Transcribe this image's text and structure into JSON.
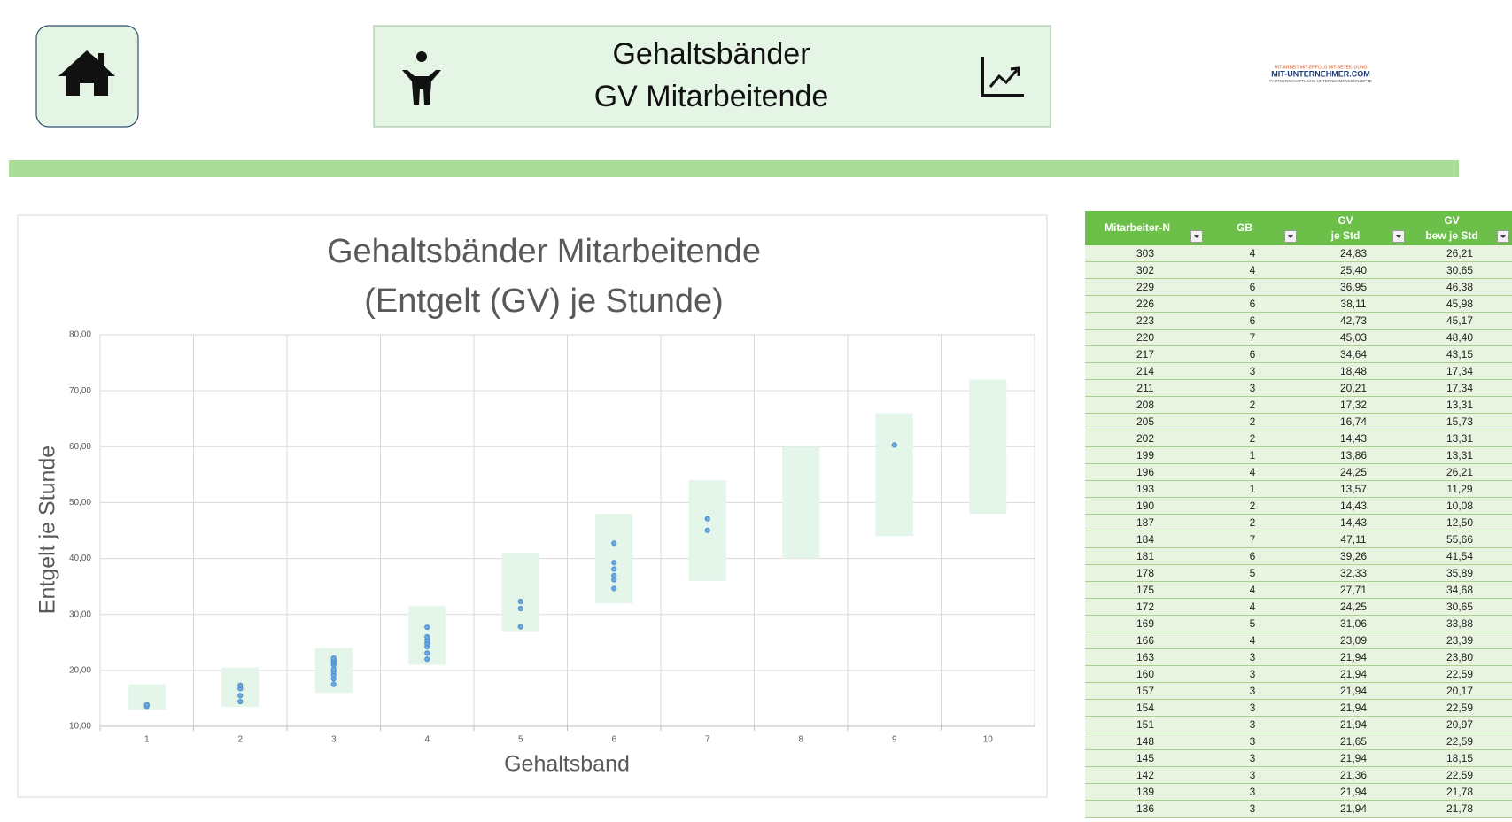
{
  "header": {
    "title_lines": [
      "Gehaltsbänder",
      "GV Mitarbeitende"
    ],
    "logo_lines": [
      "MIT-ARBEIT MIT-ERFOLG MIT-BETEILIGUNG",
      "MIT-UNTERNEHMER.COM",
      "PARTNERSCHAFTLICHE UNTERNEHMENSKONZEPTE"
    ]
  },
  "chart_data": {
    "type": "scatter",
    "title": [
      "Gehaltsbänder Mitarbeitende",
      "(Entgelt (GV) je Stunde)"
    ],
    "x_label": "Gehaltsband",
    "y_label": "Entgelt je Stunde",
    "xlim": [
      0.5,
      10.5
    ],
    "xticks": [
      1,
      2,
      3,
      4,
      5,
      6,
      7,
      8,
      9,
      10
    ],
    "ylim": [
      10,
      80
    ],
    "yticks": [
      {
        "value": 10,
        "label": "10,00"
      },
      {
        "value": 20,
        "label": "20,00"
      },
      {
        "value": 30,
        "label": "30,00"
      },
      {
        "value": 40,
        "label": "40,00"
      },
      {
        "value": 50,
        "label": "50,00"
      },
      {
        "value": 60,
        "label": "60,00"
      },
      {
        "value": 70,
        "label": "70,00"
      },
      {
        "value": 80,
        "label": "80,00"
      }
    ],
    "grid": true,
    "bands": {
      "x": [
        1,
        2,
        3,
        4,
        5,
        6,
        7,
        8,
        9,
        10
      ],
      "low": [
        13,
        13.5,
        16,
        21,
        27,
        32,
        36,
        40,
        44,
        48
      ],
      "high": [
        17.5,
        20.5,
        24,
        31.5,
        41,
        48,
        54,
        60,
        66,
        72
      ],
      "color": "#e4f5ea"
    },
    "series": [
      {
        "color": "#4a8fd4",
        "x": [
          1,
          1,
          2,
          2,
          2,
          2,
          3,
          3,
          3,
          3,
          3,
          3,
          3,
          3,
          3,
          3,
          4,
          4,
          4,
          4,
          4,
          4,
          4,
          5,
          5,
          5,
          6,
          6,
          6,
          6,
          6,
          6,
          7,
          7,
          9
        ],
        "values": [
          13.57,
          13.86,
          14.43,
          15.5,
          16.74,
          17.32,
          17.5,
          18.48,
          19.2,
          19.8,
          20.21,
          21,
          21.36,
          21.65,
          21.94,
          22.2,
          22,
          23.09,
          24.25,
          24.83,
          25.4,
          26,
          27.71,
          27.8,
          31.06,
          32.33,
          34.64,
          36.2,
          36.95,
          38.11,
          39.26,
          42.73,
          45.03,
          47.11,
          60.3
        ]
      }
    ]
  },
  "table": {
    "columns": [
      [
        "Mitarbeiter-N"
      ],
      [
        "GB"
      ],
      [
        "GV",
        "je Std"
      ],
      [
        "GV",
        "bew je Std"
      ]
    ],
    "rows": [
      [
        "303",
        "4",
        "24,83",
        "26,21"
      ],
      [
        "302",
        "4",
        "25,40",
        "30,65"
      ],
      [
        "229",
        "6",
        "36,95",
        "46,38"
      ],
      [
        "226",
        "6",
        "38,11",
        "45,98"
      ],
      [
        "223",
        "6",
        "42,73",
        "45,17"
      ],
      [
        "220",
        "7",
        "45,03",
        "48,40"
      ],
      [
        "217",
        "6",
        "34,64",
        "43,15"
      ],
      [
        "214",
        "3",
        "18,48",
        "17,34"
      ],
      [
        "211",
        "3",
        "20,21",
        "17,34"
      ],
      [
        "208",
        "2",
        "17,32",
        "13,31"
      ],
      [
        "205",
        "2",
        "16,74",
        "15,73"
      ],
      [
        "202",
        "2",
        "14,43",
        "13,31"
      ],
      [
        "199",
        "1",
        "13,86",
        "13,31"
      ],
      [
        "196",
        "4",
        "24,25",
        "26,21"
      ],
      [
        "193",
        "1",
        "13,57",
        "11,29"
      ],
      [
        "190",
        "2",
        "14,43",
        "10,08"
      ],
      [
        "187",
        "2",
        "14,43",
        "12,50"
      ],
      [
        "184",
        "7",
        "47,11",
        "55,66"
      ],
      [
        "181",
        "6",
        "39,26",
        "41,54"
      ],
      [
        "178",
        "5",
        "32,33",
        "35,89"
      ],
      [
        "175",
        "4",
        "27,71",
        "34,68"
      ],
      [
        "172",
        "4",
        "24,25",
        "30,65"
      ],
      [
        "169",
        "5",
        "31,06",
        "33,88"
      ],
      [
        "166",
        "4",
        "23,09",
        "23,39"
      ],
      [
        "163",
        "3",
        "21,94",
        "23,80"
      ],
      [
        "160",
        "3",
        "21,94",
        "22,59"
      ],
      [
        "157",
        "3",
        "21,94",
        "20,17"
      ],
      [
        "154",
        "3",
        "21,94",
        "22,59"
      ],
      [
        "151",
        "3",
        "21,94",
        "20,97"
      ],
      [
        "148",
        "3",
        "21,65",
        "22,59"
      ],
      [
        "145",
        "3",
        "21,94",
        "18,15"
      ],
      [
        "142",
        "3",
        "21,36",
        "22,59"
      ],
      [
        "139",
        "3",
        "21,94",
        "21,78"
      ],
      [
        "136",
        "3",
        "21,94",
        "21,78"
      ]
    ]
  }
}
